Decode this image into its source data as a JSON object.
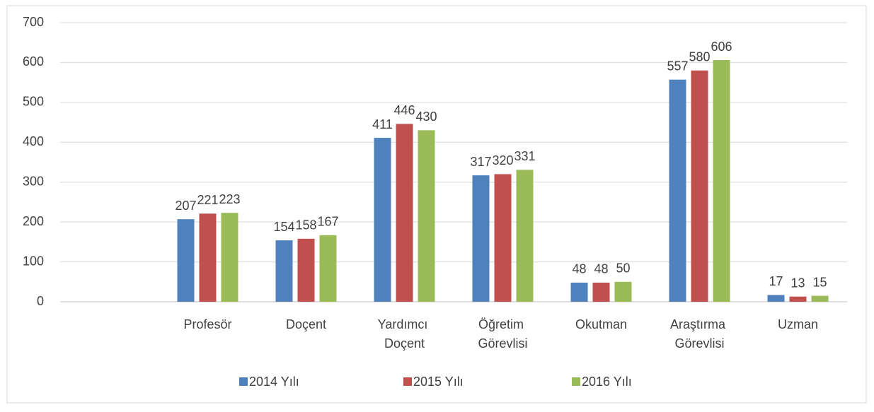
{
  "chart_data": {
    "type": "bar",
    "categories": [
      null,
      "Profesör",
      "Doçent",
      "Yardımcı Doçent",
      "Öğretim Görevlisi",
      "Okutman",
      "Araştırma Görevlisi",
      "Uzman"
    ],
    "series": [
      {
        "name": "2014 Yılı",
        "color": "#4f81bd",
        "values": [
          null,
          207,
          154,
          411,
          317,
          48,
          557,
          17
        ]
      },
      {
        "name": "2015 Yılı",
        "color": "#c0504d",
        "values": [
          null,
          221,
          158,
          446,
          320,
          48,
          580,
          13
        ]
      },
      {
        "name": "2016 Yılı",
        "color": "#9bbb59",
        "values": [
          null,
          223,
          167,
          430,
          331,
          50,
          606,
          15
        ]
      }
    ],
    "ylim": [
      0,
      700
    ],
    "yticks": [
      0,
      100,
      200,
      300,
      400,
      500,
      600,
      700
    ],
    "grid": true,
    "legend": "bottom"
  }
}
